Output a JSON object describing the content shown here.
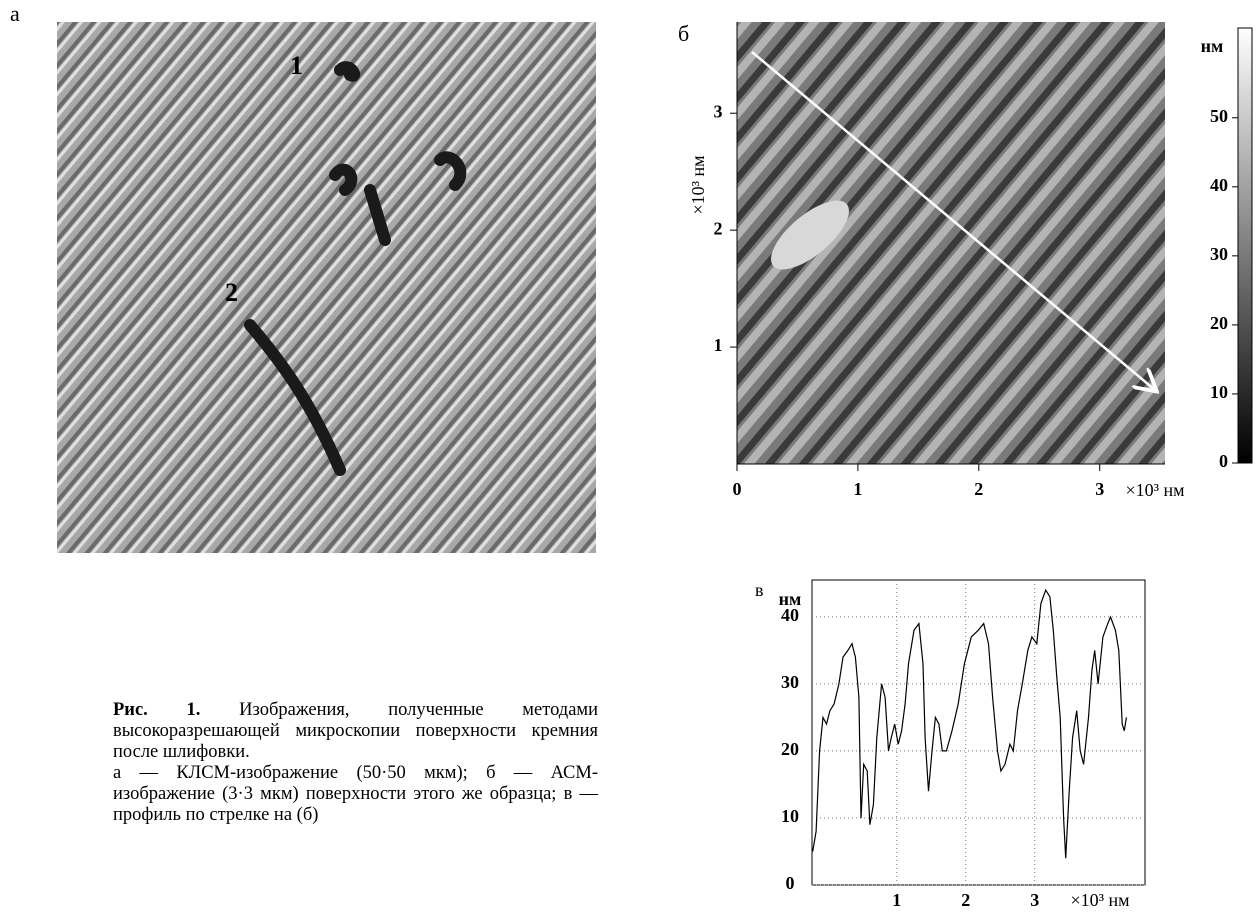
{
  "panel_a": {
    "label": "а",
    "markers": [
      "1",
      "2"
    ]
  },
  "panel_b": {
    "label": "б",
    "xlim": [
      0,
      3.54
    ],
    "ylim": [
      0,
      3.78
    ],
    "xticks": [
      0,
      1,
      2,
      3
    ],
    "yticks": [
      1,
      2,
      3
    ],
    "x_unit": "×10³ нм",
    "y_unit": "×10³ нм",
    "colorbar": {
      "unit": "нм",
      "lim": [
        0,
        63
      ],
      "ticks": [
        0,
        10,
        20,
        30,
        40,
        50
      ]
    }
  },
  "chart_data": {
    "type": "line",
    "label": "в",
    "y_unit": "нм",
    "x_unit": "×10³ нм",
    "color": "#000000",
    "x": [
      -0.22,
      -0.17,
      -0.12,
      -0.07,
      -0.02,
      0.03,
      0.09,
      0.16,
      0.22,
      0.29,
      0.35,
      0.4,
      0.45,
      0.48,
      0.52,
      0.57,
      0.61,
      0.66,
      0.71,
      0.78,
      0.83,
      0.88,
      0.92,
      0.97,
      1.02,
      1.07,
      1.12,
      1.17,
      1.25,
      1.32,
      1.38,
      1.41,
      1.46,
      1.51,
      1.56,
      1.61,
      1.66,
      1.72,
      1.8,
      1.89,
      1.98,
      2.08,
      2.18,
      2.26,
      2.33,
      2.39,
      2.46,
      2.51,
      2.57,
      2.64,
      2.69,
      2.75,
      2.82,
      2.9,
      2.96,
      3.03,
      3.09,
      3.16,
      3.22,
      3.27,
      3.32,
      3.37,
      3.42,
      3.45,
      3.5,
      3.55,
      3.61,
      3.66,
      3.71,
      3.78,
      3.83,
      3.87,
      3.92,
      3.99,
      4.06,
      4.1,
      4.17,
      4.22,
      4.27,
      4.3,
      4.33
    ],
    "values": [
      5,
      8,
      20,
      25,
      24,
      26,
      27,
      30,
      34,
      35,
      36,
      34,
      28,
      10,
      18,
      17,
      9,
      12,
      22,
      30,
      28,
      20,
      22,
      24,
      21,
      23,
      27,
      33,
      38,
      39,
      33,
      22,
      14,
      20,
      25,
      24,
      20,
      20,
      23,
      27,
      33,
      37,
      38,
      39,
      36,
      28,
      20,
      17,
      18,
      21,
      20,
      26,
      30,
      35,
      37,
      36,
      42,
      44,
      43,
      38,
      31,
      25,
      10,
      4,
      14,
      22,
      26,
      20,
      18,
      25,
      32,
      35,
      30,
      37,
      39,
      40,
      38,
      35,
      24,
      23,
      25
    ],
    "xlim": [
      -0.23,
      4.6
    ],
    "ylim": [
      0,
      45.5
    ],
    "xticks": [
      1,
      2,
      3
    ],
    "yticks": [
      0,
      10,
      20,
      30,
      40
    ],
    "grid": true
  },
  "caption": {
    "label": "Рис. 1.",
    "text": "Изображения, полученные методами высокоразрешающей микроскопии поверхности кремния после шлифовки.",
    "legend": "а — КЛСМ-изображение (50·50 мкм); б — АСМ-изображение (3·3 мкм) поверхности этого же образца; в — профиль по стрелке на (б)"
  }
}
